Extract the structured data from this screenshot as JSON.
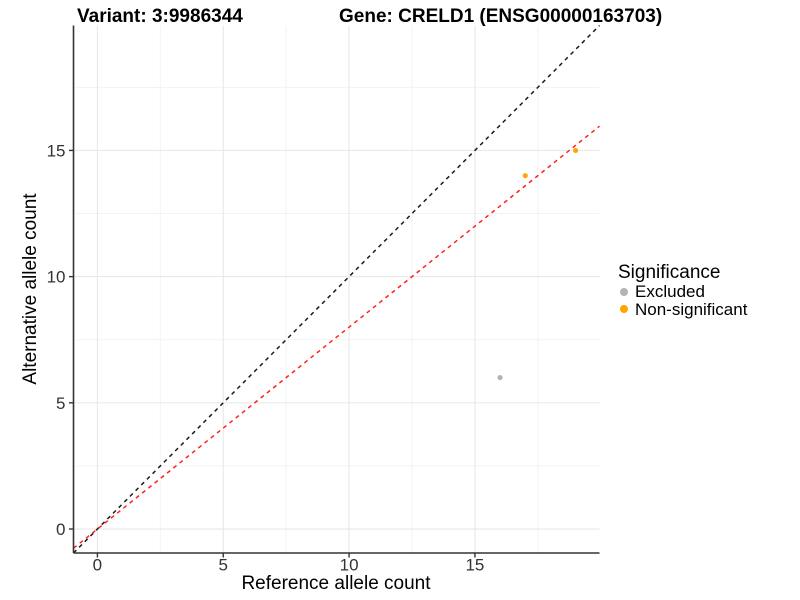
{
  "chart_data": {
    "type": "scatter",
    "title_left": "Variant: 3:9986344",
    "title_right": "Gene: CRELD1 (ENSG00000163703)",
    "xlabel": "Reference allele count",
    "ylabel": "Alternative allele count",
    "xlim": [
      -0.95,
      19.95
    ],
    "ylim": [
      -0.95,
      19.95
    ],
    "x_ticks": [
      0,
      5,
      10,
      15
    ],
    "y_ticks": [
      0,
      5,
      10,
      15
    ],
    "x_minor_ticks": [
      2.5,
      7.5,
      12.5,
      17.5
    ],
    "y_minor_ticks": [
      2.5,
      7.5,
      12.5,
      17.5
    ],
    "grid": "major-and-minor",
    "points": [
      {
        "x": 16,
        "y": 6,
        "group": "Excluded"
      },
      {
        "x": 17,
        "y": 14,
        "group": "Non-significant"
      },
      {
        "x": 19,
        "y": 15,
        "group": "Non-significant"
      }
    ],
    "lines": [
      {
        "name": "identity-line",
        "slope": 1.0,
        "intercept": 0,
        "color": "#1A1A1A",
        "dash": "4 4"
      },
      {
        "name": "expected-line",
        "slope": 0.8,
        "intercept": 0,
        "color": "#FF2020",
        "dash": "4 4"
      }
    ],
    "legend": {
      "title": "Significance",
      "position": "right",
      "items": [
        {
          "label": "Excluded",
          "color": "#B4B4B4"
        },
        {
          "label": "Non-significant",
          "color": "#FFA500"
        }
      ]
    },
    "colors": {
      "grid_major": "#E6E6E6",
      "grid_minor": "#F3F3F3",
      "axis": "#333333",
      "tick_text": "#333333"
    }
  }
}
